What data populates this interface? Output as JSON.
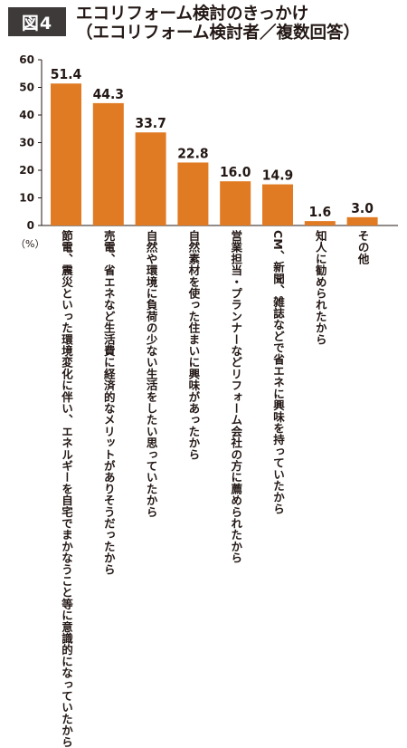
{
  "figure": {
    "badge": "図4"
  },
  "title_line1": "エコリフォーム検討のきっかけ",
  "title_line2": "（エコリフォーム検討者／複数回答）",
  "unit_label": "（%）",
  "chart_data": {
    "type": "bar",
    "title": "エコリフォーム検討のきっかけ",
    "subtitle": "（エコリフォーム検討者／複数回答）",
    "ylabel": "（%）",
    "ylim": [
      0,
      60
    ],
    "yticks": [
      0,
      10,
      20,
      30,
      40,
      50,
      60
    ],
    "grid": false,
    "bar_color": "#e07b24",
    "categories": [
      "節電、震災といった環境変化に伴い、エネルギーを自宅でまかなうこと等に意識的になっていたから",
      "売電、省エネなど生活費に経済的なメリットがありそうだったから",
      "自然や環境に負荷の少ない生活をしたい思っていたから",
      "自然素材を使った住まいに興味があったから",
      "営業担当・プランナーなどリフォーム会社の方に薦められたから",
      "CM、新聞、雑誌などで省エネに興味を持っていたから",
      "知人に勧められたから",
      "その他"
    ],
    "values": [
      51.4,
      44.3,
      33.7,
      22.8,
      16.0,
      14.9,
      1.6,
      3.0
    ],
    "value_labels": [
      "51.4",
      "44.3",
      "33.7",
      "22.8",
      "16.0",
      "14.9",
      "1.6",
      "3.0"
    ]
  }
}
